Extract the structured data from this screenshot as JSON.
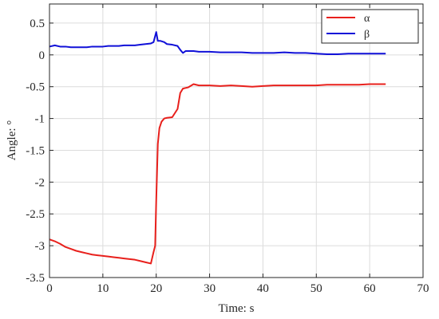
{
  "chart_data": {
    "type": "line",
    "title": "",
    "xlabel": "Time: s",
    "ylabel": "Angle: °",
    "xlim": [
      0,
      70
    ],
    "ylim": [
      -3.5,
      0.8
    ],
    "xticks": [
      0,
      10,
      20,
      30,
      40,
      50,
      60,
      70
    ],
    "yticks": [
      0.5,
      0,
      -0.5,
      -1,
      -1.5,
      -2,
      -2.5,
      -3,
      -3.5
    ],
    "xtick_labels": [
      "0",
      "10",
      "20",
      "30",
      "40",
      "50",
      "60",
      "70"
    ],
    "ytick_labels": [
      "0.5",
      "0",
      "-0.5",
      "-1",
      "-1.5",
      "-2",
      "-2.5",
      "-3",
      "-3.5"
    ],
    "grid": true,
    "legend": "top-right",
    "series": [
      {
        "name": "α",
        "color": "#e8201c",
        "x": [
          0,
          1,
          2,
          3,
          4,
          5,
          6,
          7,
          8,
          9,
          10,
          11,
          12,
          13,
          14,
          15,
          16,
          17,
          18,
          19,
          19.5,
          19.8,
          20.0,
          20.3,
          20.6,
          21.0,
          21.5,
          22.0,
          23.0,
          24.0,
          24.5,
          25.0,
          25.5,
          26.0,
          27.0,
          28.0,
          30.0,
          32.0,
          34.0,
          36.0,
          38.0,
          40.0,
          42.0,
          44.0,
          46.0,
          48.0,
          50.0,
          52.0,
          54.0,
          56.0,
          58.0,
          60.0,
          62.0,
          63.0
        ],
        "y": [
          -2.9,
          -2.93,
          -2.97,
          -3.02,
          -3.05,
          -3.08,
          -3.1,
          -3.12,
          -3.14,
          -3.15,
          -3.16,
          -3.17,
          -3.18,
          -3.19,
          -3.2,
          -3.21,
          -3.22,
          -3.24,
          -3.26,
          -3.28,
          -3.1,
          -3.0,
          -2.3,
          -1.4,
          -1.15,
          -1.05,
          -1.0,
          -0.99,
          -0.98,
          -0.85,
          -0.6,
          -0.53,
          -0.52,
          -0.51,
          -0.46,
          -0.48,
          -0.48,
          -0.49,
          -0.48,
          -0.49,
          -0.5,
          -0.49,
          -0.48,
          -0.48,
          -0.48,
          -0.48,
          -0.48,
          -0.47,
          -0.47,
          -0.47,
          -0.47,
          -0.46,
          -0.46,
          -0.46
        ]
      },
      {
        "name": "β",
        "color": "#1010d8",
        "x": [
          0,
          1,
          2,
          3,
          4,
          5,
          6,
          7,
          8,
          9,
          10,
          11,
          12,
          13,
          14,
          15,
          16,
          17,
          18,
          19,
          19.5,
          20.0,
          20.3,
          20.8,
          21.5,
          22.0,
          23.0,
          24.0,
          24.5,
          25.0,
          25.5,
          26.0,
          27.0,
          28.0,
          30.0,
          32.0,
          34.0,
          36.0,
          38.0,
          40.0,
          42.0,
          44.0,
          46.0,
          48.0,
          50.0,
          52.0,
          54.0,
          56.0,
          58.0,
          60.0,
          62.0,
          63.0
        ],
        "y": [
          0.13,
          0.15,
          0.13,
          0.13,
          0.12,
          0.12,
          0.12,
          0.12,
          0.13,
          0.13,
          0.13,
          0.14,
          0.14,
          0.14,
          0.15,
          0.15,
          0.15,
          0.16,
          0.17,
          0.18,
          0.2,
          0.36,
          0.22,
          0.22,
          0.2,
          0.17,
          0.16,
          0.14,
          0.08,
          0.03,
          0.06,
          0.06,
          0.06,
          0.05,
          0.05,
          0.04,
          0.04,
          0.04,
          0.03,
          0.03,
          0.03,
          0.04,
          0.03,
          0.03,
          0.02,
          0.01,
          0.01,
          0.02,
          0.02,
          0.02,
          0.02,
          0.02
        ]
      }
    ]
  }
}
